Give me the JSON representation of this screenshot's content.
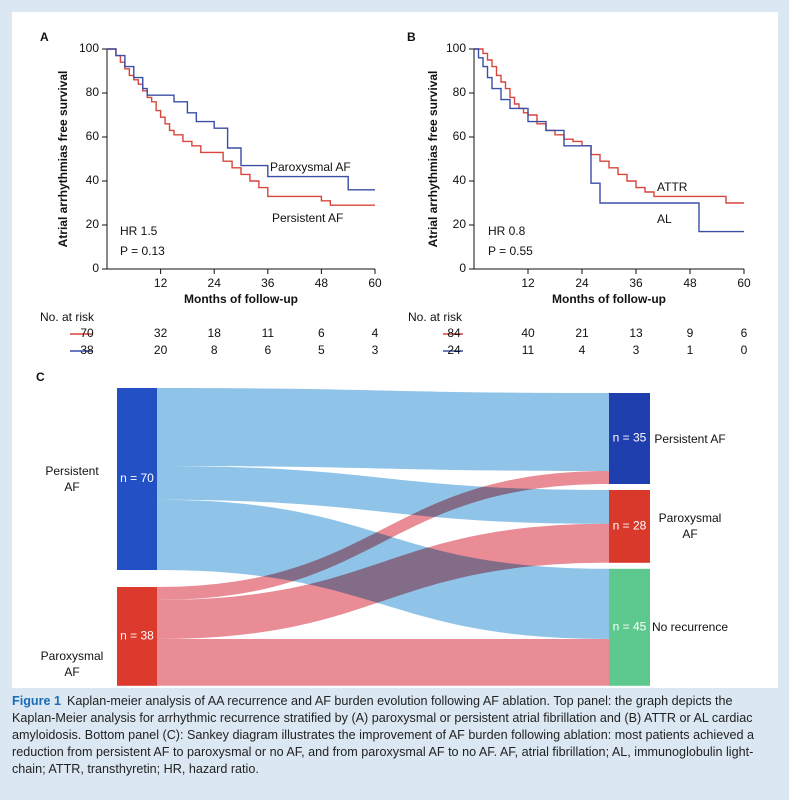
{
  "chart_data": [
    {
      "type": "line",
      "step": true,
      "panel": "A",
      "y_label": "Atrial arrhythmias free survival",
      "x_label": "Months of follow-up",
      "xlim": [
        0,
        60
      ],
      "xticks": [
        12,
        24,
        36,
        48,
        60
      ],
      "ylim": [
        0,
        100
      ],
      "yticks": [
        0,
        20,
        40,
        60,
        80,
        100
      ],
      "series": [
        {
          "name": "Persistent AF",
          "color": "#d9453b",
          "x": [
            0,
            2,
            3,
            4,
            5,
            6,
            7,
            8,
            9,
            10,
            11,
            12,
            13,
            14,
            15,
            17,
            19,
            21,
            24,
            26,
            28,
            30,
            32,
            34,
            36,
            40,
            48,
            50,
            60
          ],
          "values": [
            100,
            97,
            94,
            91,
            88,
            86,
            84,
            81,
            78,
            76,
            72,
            69,
            66,
            63,
            61,
            58,
            56,
            53,
            53,
            49,
            46,
            43,
            40,
            37,
            33,
            33,
            31,
            29,
            29
          ]
        },
        {
          "name": "Paroxysmal AF",
          "color": "#3a4ea6",
          "x": [
            0,
            2,
            4,
            6,
            8,
            9,
            12,
            15,
            18,
            20,
            24,
            27,
            30,
            36,
            48,
            54,
            60
          ],
          "values": [
            100,
            97,
            92,
            87,
            82,
            79,
            79,
            76,
            71,
            67,
            64,
            55,
            47,
            42,
            42,
            36,
            36
          ]
        }
      ],
      "annotations": [
        "HR 1.5",
        "P = 0.13"
      ],
      "risk_table": {
        "title": "No. at risk",
        "rows": [
          [
            70,
            32,
            18,
            11,
            6,
            4
          ],
          [
            38,
            20,
            8,
            6,
            5,
            3
          ]
        ]
      }
    },
    {
      "type": "line",
      "step": true,
      "panel": "B",
      "y_label": "Atrial arrhythmias free survival",
      "x_label": "Months of follow-up",
      "xlim": [
        0,
        60
      ],
      "xticks": [
        12,
        24,
        36,
        48,
        60
      ],
      "ylim": [
        0,
        100
      ],
      "yticks": [
        0,
        20,
        40,
        60,
        80,
        100
      ],
      "series": [
        {
          "name": "ATTR",
          "color": "#d9453b",
          "x": [
            0,
            2,
            3,
            4,
            5,
            6,
            7,
            8,
            9,
            10,
            11,
            12,
            14,
            16,
            18,
            20,
            22,
            24,
            26,
            28,
            30,
            32,
            34,
            36,
            38,
            40,
            44,
            48,
            52,
            56,
            60
          ],
          "values": [
            100,
            98,
            95,
            92,
            88,
            85,
            82,
            78,
            75,
            73,
            71,
            70,
            66,
            63,
            61,
            59,
            58,
            56,
            52,
            49,
            46,
            43,
            40,
            37,
            35,
            33,
            33,
            33,
            33,
            30,
            30
          ]
        },
        {
          "name": "AL",
          "color": "#3a4ea6",
          "x": [
            0,
            1,
            2,
            3,
            4,
            6,
            8,
            12,
            16,
            20,
            24,
            26,
            28,
            36,
            44,
            50,
            60
          ],
          "values": [
            100,
            96,
            92,
            87,
            82,
            77,
            73,
            67,
            63,
            56,
            56,
            39,
            30,
            30,
            30,
            17,
            17
          ]
        }
      ],
      "annotations": [
        "HR 0.8",
        "P = 0.55"
      ],
      "risk_table": {
        "title": "No. at risk",
        "rows": [
          [
            84,
            40,
            21,
            13,
            9,
            6
          ],
          [
            24,
            11,
            4,
            3,
            1,
            0
          ]
        ]
      }
    },
    {
      "type": "sankey",
      "panel": "C",
      "left_nodes": [
        {
          "name": "Persistent AF",
          "value": 70,
          "value_label": "n = 70",
          "color": "#2350c4",
          "flow_color": "#8fc4e8"
        },
        {
          "name": "Paroxysmal AF",
          "value": 38,
          "value_label": "n = 38",
          "color": "#dc3a2c",
          "flow_color": "#e98c95"
        }
      ],
      "right_nodes": [
        {
          "name": "Persistent AF",
          "value": 35,
          "value_label": "n = 35",
          "color": "#1f3fae"
        },
        {
          "name": "Paroxysmal AF",
          "value": 28,
          "value_label": "n = 28",
          "color": "#d8392b"
        },
        {
          "name": "No recurrence",
          "value": 45,
          "value_label": "n = 45",
          "color": "#5ec98f"
        }
      ],
      "flows": [
        [
          30,
          13,
          27
        ],
        [
          5,
          15,
          18
        ]
      ]
    }
  ],
  "caption": {
    "label": "Figure 1",
    "text": "Kaplan-meier analysis of AA recurrence and AF burden evolution following AF ablation. Top panel: the graph depicts the Kaplan-Meier analysis for arrhythmic recurrence stratified by (A) paroxysmal or persistent atrial fibrillation and (B) ATTR or AL cardiac amyloidosis. Bottom panel (C): Sankey diagram illustrates the improvement of AF burden following ablation: most patients achieved a reduction from persistent AF to paroxysmal or no AF, and from paroxysmal AF to no AF. AF, atrial fibrillation; AL, immunoglobulin light-chain; ATTR, transthyretin; HR, hazard ratio."
  }
}
